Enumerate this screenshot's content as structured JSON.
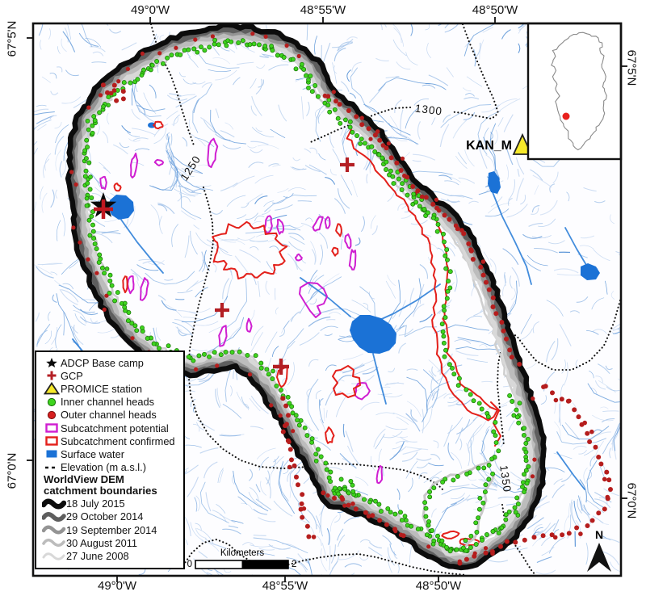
{
  "map": {
    "axis_labels": {
      "top": [
        "49°0'W",
        "48°55'W",
        "48°50'W"
      ],
      "bottom": [
        "49°0'W",
        "48°55'W",
        "48°50'W"
      ],
      "left": [
        "67°5'N",
        "67°0'N"
      ],
      "right": [
        "67°5'N",
        "67°0'N"
      ]
    },
    "contour_labels": [
      "1250",
      "1300",
      "1350"
    ],
    "station_label": "KAN_M",
    "scale_bar": {
      "title": "Kilometers",
      "start": "0",
      "end": "2"
    },
    "north_label": "N"
  },
  "legend": {
    "items": [
      {
        "icon": "star-black",
        "label": "ADCP Base camp"
      },
      {
        "icon": "cross-red",
        "label": "GCP"
      },
      {
        "icon": "triangle-yellow",
        "label": "PROMICE station"
      },
      {
        "icon": "dot-green",
        "label": "Inner channel heads"
      },
      {
        "icon": "dot-red",
        "label": "Outer channel heads"
      },
      {
        "icon": "rect-magenta",
        "label": "Subcatchment potential"
      },
      {
        "icon": "rect-red",
        "label": "Subcatchment confirmed"
      },
      {
        "icon": "square-blue",
        "label": "Surface water"
      },
      {
        "icon": "dashed-black",
        "label": "Elevation (m a.s.l.)"
      }
    ],
    "group_title_line1": "WorldView DEM",
    "group_title_line2": "catchment boundaries",
    "boundary_items": [
      {
        "color": "#0c0c0c",
        "label": "18 July 2015"
      },
      {
        "color": "#5e5e5e",
        "label": "29 October 2014"
      },
      {
        "color": "#949494",
        "label": "19 September 2014"
      },
      {
        "color": "#bcbcbc",
        "label": "30 August 2011"
      },
      {
        "color": "#d8d8d8",
        "label": "27 June 2008"
      }
    ]
  },
  "colors": {
    "surface_water": "#1b72d6",
    "inner_channel": "#3fd41e",
    "inner_channel_edge": "#157005",
    "outer_channel": "#b51d1d",
    "subcatchment_potential": "#cf1fd1",
    "subcatchment_confirmed": "#e3201b",
    "stream_faint": "#c7d9f2",
    "stream_light": "#b0cbec",
    "stream_mid": "#8fb6e5",
    "stream_dark": "#5e97d8",
    "station_marker": "#f6e92a",
    "contour": "#111111"
  }
}
